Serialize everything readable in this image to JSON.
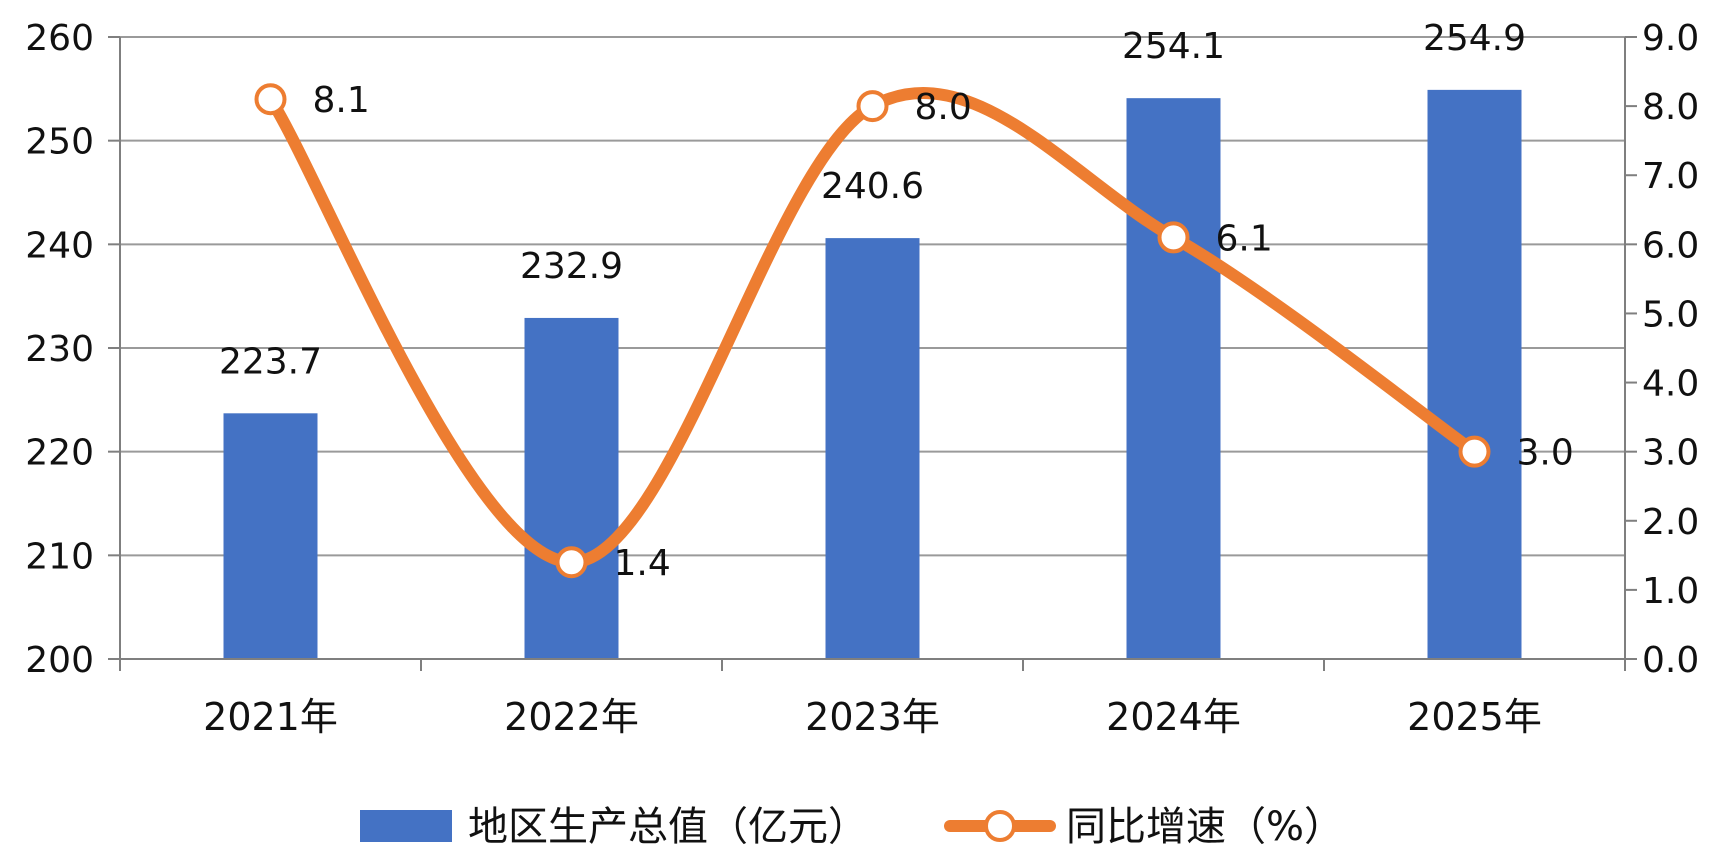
{
  "chart_data": {
    "type": "bar",
    "categories": [
      "2021年",
      "2022年",
      "2023年",
      "2024年",
      "2025年"
    ],
    "series": [
      {
        "name": "地区生产总值（亿元）",
        "type": "bar",
        "axis": "left",
        "color": "#4472C4",
        "values": [
          223.7,
          232.9,
          240.6,
          254.1,
          254.9
        ],
        "labels": [
          "223.7",
          "232.9",
          "240.6",
          "254.1",
          "254.9"
        ]
      },
      {
        "name": "同比增速（%）",
        "type": "line",
        "axis": "right",
        "smooth": true,
        "color": "#ED7D31",
        "values": [
          8.1,
          1.4,
          8.0,
          6.1,
          3.0
        ],
        "labels": [
          "8.1",
          "1.4",
          "8.0",
          "6.1",
          "3.0"
        ]
      }
    ],
    "left_axis": {
      "ylim": [
        200,
        260
      ],
      "ticks": [
        "200",
        "210",
        "220",
        "230",
        "240",
        "250",
        "260"
      ]
    },
    "right_axis": {
      "ylim": [
        0,
        9
      ],
      "ticks": [
        "0.0",
        "1.0",
        "2.0",
        "3.0",
        "4.0",
        "5.0",
        "6.0",
        "7.0",
        "8.0",
        "9.0"
      ]
    },
    "grid": true,
    "legend_position": "bottom"
  }
}
